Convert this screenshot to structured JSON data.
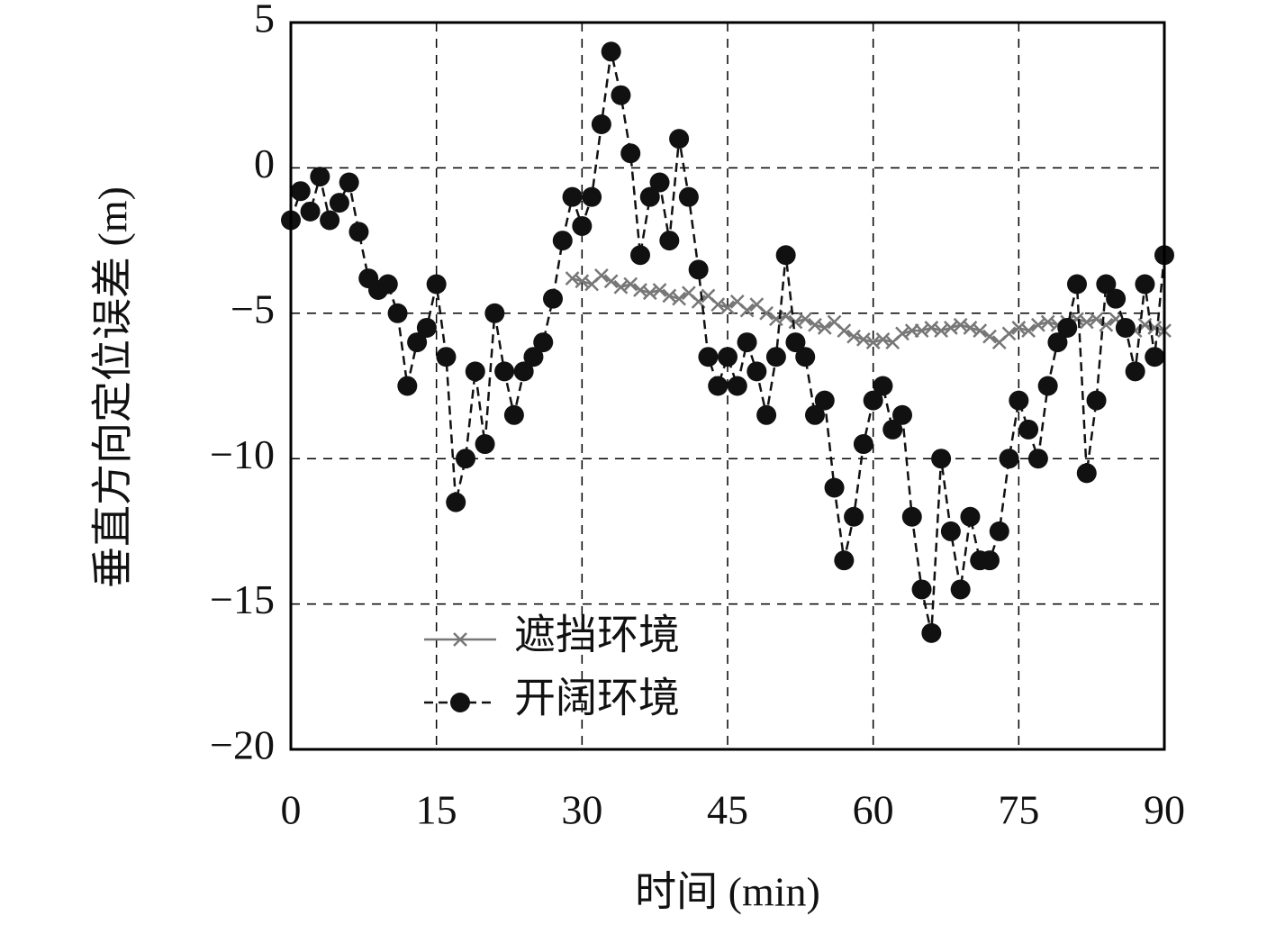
{
  "chart_data": {
    "type": "line",
    "xlabel": "时间 (min)",
    "ylabel": "垂直方向定位误差 (m)",
    "x": [
      0,
      1,
      2,
      3,
      4,
      5,
      6,
      7,
      8,
      9,
      10,
      11,
      12,
      13,
      14,
      15,
      16,
      17,
      18,
      19,
      20,
      21,
      22,
      23,
      24,
      25,
      26,
      27,
      28,
      29,
      30,
      31,
      32,
      33,
      34,
      35,
      36,
      37,
      38,
      39,
      40,
      41,
      42,
      43,
      44,
      45,
      46,
      47,
      48,
      49,
      50,
      51,
      52,
      53,
      54,
      55,
      56,
      57,
      58,
      59,
      60,
      61,
      62,
      63,
      64,
      65,
      66,
      67,
      68,
      69,
      70,
      71,
      72,
      73,
      74,
      75,
      76,
      77,
      78,
      79,
      80,
      81,
      82,
      83,
      84,
      85,
      86,
      87,
      88,
      89,
      90
    ],
    "series": [
      {
        "name": "遮挡环境",
        "color": "#777777",
        "marker": "x",
        "dashed": false,
        "values": [
          null,
          null,
          null,
          null,
          null,
          null,
          null,
          null,
          null,
          null,
          null,
          null,
          null,
          null,
          null,
          null,
          null,
          null,
          null,
          null,
          null,
          null,
          null,
          null,
          null,
          null,
          null,
          null,
          null,
          -3.8,
          -3.9,
          -4.0,
          -3.7,
          -3.9,
          -4.1,
          -4.0,
          -4.2,
          -4.3,
          -4.2,
          -4.4,
          -4.5,
          -4.3,
          -4.6,
          -4.4,
          -4.7,
          -4.8,
          -4.6,
          -4.9,
          -4.7,
          -5.0,
          -5.2,
          -5.1,
          -5.3,
          -5.2,
          -5.4,
          -5.5,
          -5.3,
          -5.6,
          -5.8,
          -5.9,
          -6.0,
          -5.9,
          -6.0,
          -5.7,
          -5.6,
          -5.6,
          -5.5,
          -5.6,
          -5.5,
          -5.4,
          -5.5,
          -5.6,
          -5.8,
          -6.0,
          -5.7,
          -5.5,
          -5.6,
          -5.4,
          -5.3,
          -5.4,
          -5.3,
          -5.2,
          -5.3,
          -5.2,
          -5.4,
          -5.2,
          -5.5,
          -5.6,
          -5.4,
          -5.5,
          -5.6
        ]
      },
      {
        "name": "开阔环境",
        "color": "#111111",
        "marker": "o",
        "dashed": true,
        "values": [
          -1.8,
          -0.8,
          -1.5,
          -0.3,
          -1.8,
          -1.2,
          -0.5,
          -2.2,
          -3.8,
          -4.2,
          -4.0,
          -5.0,
          -7.5,
          -6.0,
          -5.5,
          -4.0,
          -6.5,
          -11.5,
          -10.0,
          -7.0,
          -9.5,
          -5.0,
          -7.0,
          -8.5,
          -7.0,
          -6.5,
          -6.0,
          -4.5,
          -2.5,
          -1.0,
          -2.0,
          -1.0,
          1.5,
          4.0,
          2.5,
          0.5,
          -3.0,
          -1.0,
          -0.5,
          -2.5,
          1.0,
          -1.0,
          -3.5,
          -6.5,
          -7.5,
          -6.5,
          -7.5,
          -6.0,
          -7.0,
          -8.5,
          -6.5,
          -3.0,
          -6.0,
          -6.5,
          -8.5,
          -8.0,
          -11.0,
          -13.5,
          -12.0,
          -9.5,
          -8.0,
          -7.5,
          -9.0,
          -8.5,
          -12.0,
          -14.5,
          -16.0,
          -10.0,
          -12.5,
          -14.5,
          -12.0,
          -13.5,
          -13.5,
          -12.5,
          -10.0,
          -8.0,
          -9.0,
          -10.0,
          -7.5,
          -6.0,
          -5.5,
          -4.0,
          -10.5,
          -8.0,
          -4.0,
          -4.5,
          -5.5,
          -7.0,
          -4.0,
          -6.5,
          -3.0
        ]
      }
    ],
    "xlim": [
      0,
      90
    ],
    "xticks": [
      0,
      15,
      30,
      45,
      60,
      75,
      90
    ],
    "ylim": [
      -20,
      5
    ],
    "yticks": [
      {
        "value": -20,
        "label": "−20"
      },
      {
        "value": -15,
        "label": "−15"
      },
      {
        "value": -10,
        "label": "−10"
      },
      {
        "value": -5,
        "label": "−5"
      },
      0,
      5
    ],
    "grid": true,
    "legend": "lower-left"
  }
}
